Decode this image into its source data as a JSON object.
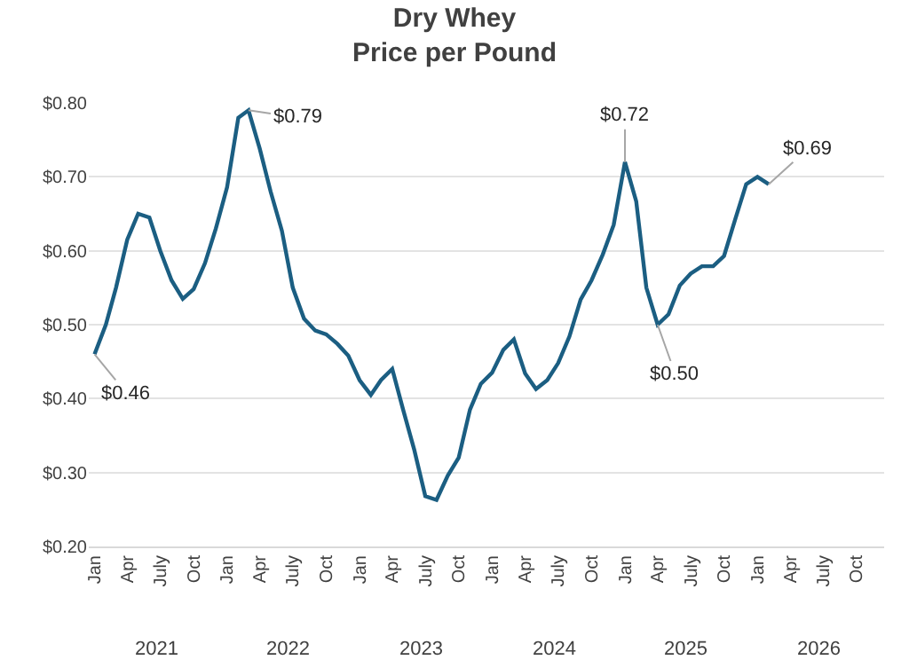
{
  "chart_data": {
    "type": "line",
    "title": "Dry Whey\nPrice per Pound",
    "x": [
      "2021-01",
      "2021-02",
      "2021-03",
      "2021-04",
      "2021-05",
      "2021-06",
      "2021-07",
      "2021-08",
      "2021-09",
      "2021-10",
      "2021-11",
      "2021-12",
      "2022-01",
      "2022-02",
      "2022-03",
      "2022-04",
      "2022-05",
      "2022-06",
      "2022-07",
      "2022-08",
      "2022-09",
      "2022-10",
      "2022-11",
      "2022-12",
      "2023-01",
      "2023-02",
      "2023-03",
      "2023-04",
      "2023-05",
      "2023-06",
      "2023-07",
      "2023-08",
      "2023-09",
      "2023-10",
      "2023-11",
      "2023-12",
      "2024-01",
      "2024-02",
      "2024-03",
      "2024-04",
      "2024-05",
      "2024-06",
      "2024-07",
      "2024-08",
      "2024-09",
      "2024-10",
      "2024-11",
      "2024-12",
      "2025-01",
      "2025-02",
      "2025-03",
      "2025-04",
      "2025-05",
      "2025-06",
      "2025-07",
      "2025-08",
      "2025-09",
      "2025-10",
      "2025-11",
      "2025-12",
      "2026-01",
      "2026-02"
    ],
    "series": [
      {
        "color": "#1b5e82",
        "values": [
          0.46,
          0.5,
          0.55,
          0.615,
          0.65,
          0.645,
          0.6,
          0.56,
          0.535,
          0.548,
          0.583,
          0.63,
          0.686,
          0.78,
          0.79,
          0.738,
          0.68,
          0.627,
          0.55,
          0.508,
          0.492,
          0.487,
          0.474,
          0.458,
          0.425,
          0.405,
          0.425,
          0.44,
          0.385,
          0.33,
          0.268,
          0.263,
          0.296,
          0.32,
          0.385,
          0.42,
          0.435,
          0.466,
          0.48,
          0.434,
          0.413,
          0.425,
          0.448,
          0.484,
          0.534,
          0.56,
          0.595,
          0.635,
          0.72,
          0.667,
          0.55,
          0.5,
          0.514,
          0.553,
          0.569,
          0.579,
          0.579,
          0.593,
          0.643,
          0.69,
          0.7,
          0.69
        ]
      }
    ],
    "xlim": [
      "2020-12-16",
      "2026-12-16"
    ],
    "xticks": [
      {
        "value": "2021-01",
        "label": "Jan"
      },
      {
        "value": "2021-04",
        "label": "Apr"
      },
      {
        "value": "2021-07",
        "label": "July"
      },
      {
        "value": "2021-10",
        "label": "Oct"
      },
      {
        "value": "2022-01",
        "label": "Jan"
      },
      {
        "value": "2022-04",
        "label": "Apr"
      },
      {
        "value": "2022-07",
        "label": "July"
      },
      {
        "value": "2022-10",
        "label": "Oct"
      },
      {
        "value": "2023-01",
        "label": "Jan"
      },
      {
        "value": "2023-04",
        "label": "Apr"
      },
      {
        "value": "2023-07",
        "label": "July"
      },
      {
        "value": "2023-10",
        "label": "Oct"
      },
      {
        "value": "2024-01",
        "label": "Jan"
      },
      {
        "value": "2024-04",
        "label": "Apr"
      },
      {
        "value": "2024-07",
        "label": "July"
      },
      {
        "value": "2024-10",
        "label": "Oct"
      },
      {
        "value": "2025-01",
        "label": "Jan"
      },
      {
        "value": "2025-04",
        "label": "Apr"
      },
      {
        "value": "2025-07",
        "label": "July"
      },
      {
        "value": "2025-10",
        "label": "Oct"
      },
      {
        "value": "2026-01",
        "label": "Jan"
      },
      {
        "value": "2026-04",
        "label": "Apr"
      },
      {
        "value": "2026-07",
        "label": "July"
      },
      {
        "value": "2026-10",
        "label": "Oct"
      }
    ],
    "ylim": [
      0.2,
      0.8
    ],
    "yticks": [
      {
        "value": 0.2,
        "label": "$0.20"
      },
      {
        "value": 0.3,
        "label": "$0.30"
      },
      {
        "value": 0.4,
        "label": "$0.40"
      },
      {
        "value": 0.5,
        "label": "$0.50"
      },
      {
        "value": 0.6,
        "label": "$0.60"
      },
      {
        "value": 0.7,
        "label": "$0.70"
      },
      {
        "value": 0.8,
        "label": "$0.80"
      }
    ],
    "grid": "y",
    "marker": "none",
    "line_style": "solid",
    "annotations": [
      {
        "text": "$0.46",
        "x": "2021-01",
        "y": 0.46
      },
      {
        "text": "$0.79",
        "x": "2022-03",
        "y": 0.79
      },
      {
        "text": "$0.72",
        "x": "2025-01",
        "y": 0.72
      },
      {
        "text": "$0.50",
        "x": "2025-04",
        "y": 0.5
      },
      {
        "text": "$0.69",
        "x": "2026-02",
        "y": 0.69
      },
      "2021",
      "2022",
      "2023",
      "2024",
      "2025",
      "2026"
    ]
  }
}
